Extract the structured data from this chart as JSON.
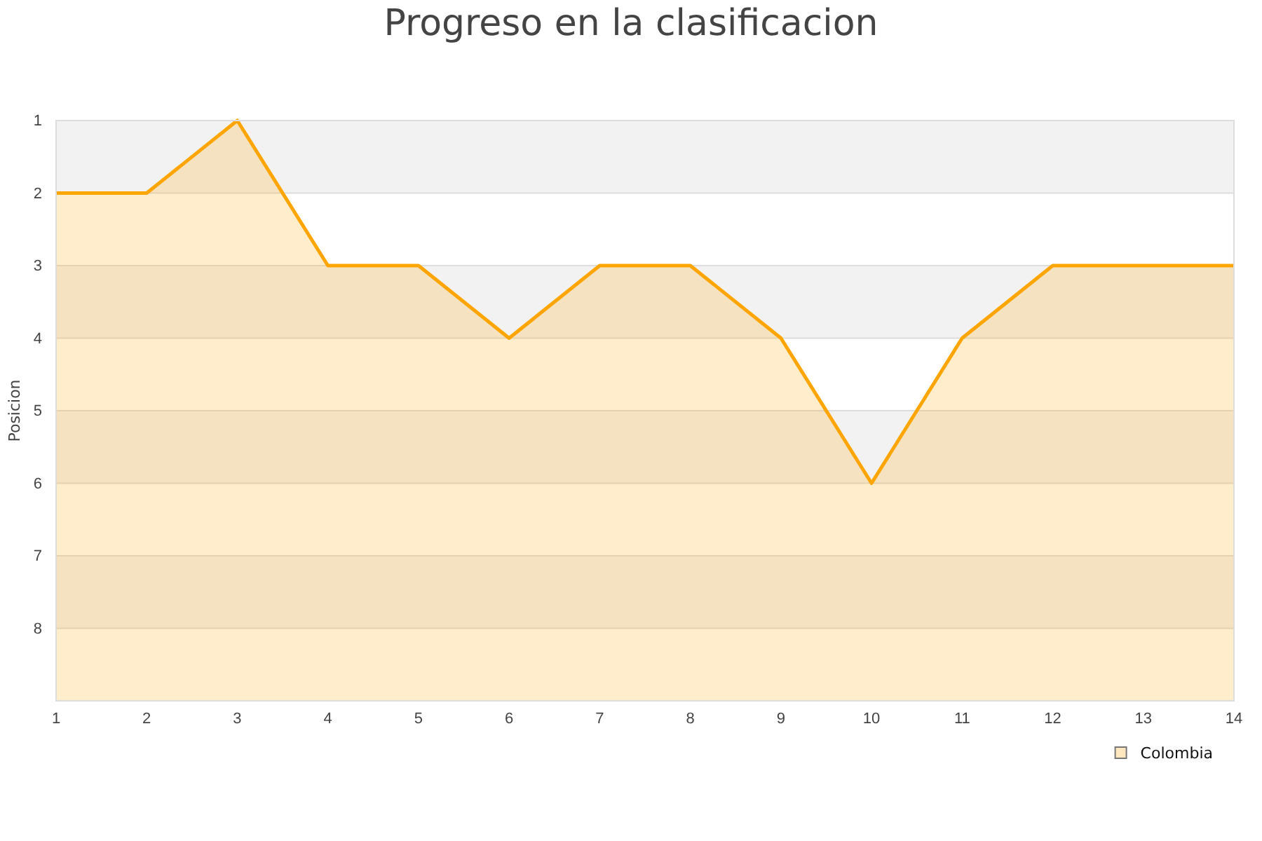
{
  "chart_data": {
    "type": "area",
    "title": "Progreso en la clasificacion",
    "ylabel": "Posicion",
    "x": [
      1,
      2,
      3,
      4,
      5,
      6,
      7,
      8,
      9,
      10,
      11,
      12,
      13,
      14
    ],
    "series": [
      {
        "name": "Colombia",
        "color": "#ffa500",
        "values": [
          2,
          2,
          1,
          3,
          3,
          4,
          3,
          3,
          4,
          6,
          4,
          3,
          3,
          3
        ]
      }
    ],
    "xlim": [
      1,
      14
    ],
    "xticks": [
      1,
      2,
      3,
      4,
      5,
      6,
      7,
      8,
      9,
      10,
      11,
      12,
      13,
      14
    ],
    "ylim": [
      9,
      1
    ],
    "yticks": [
      1,
      2,
      3,
      4,
      5,
      6,
      7,
      8
    ],
    "grid": true,
    "legend": "bottom right"
  }
}
